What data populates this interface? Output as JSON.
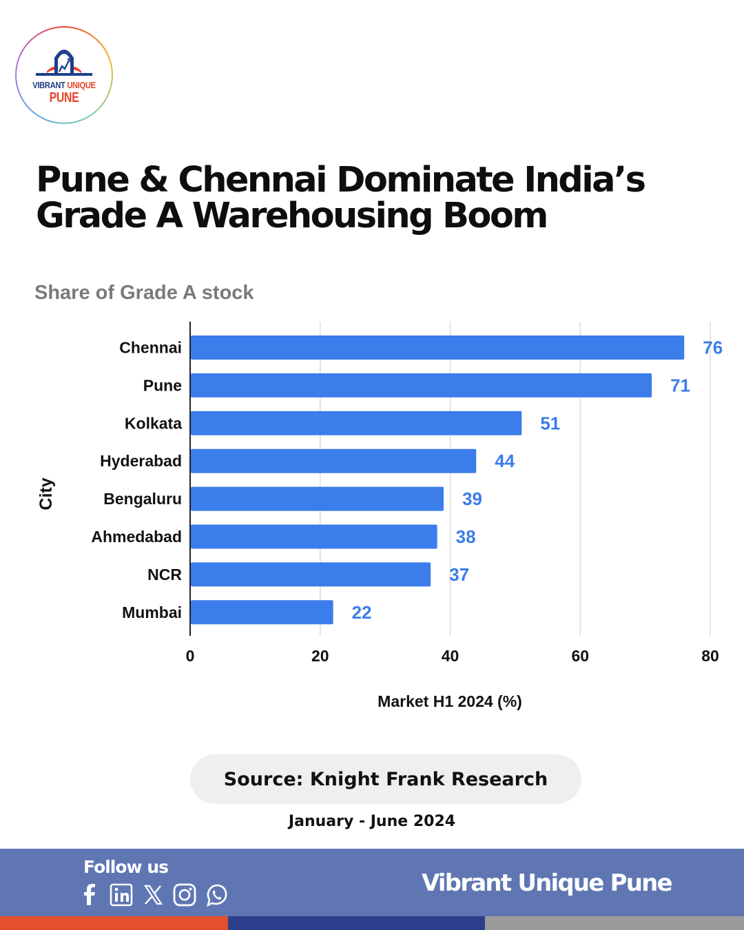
{
  "brand": {
    "logo_line1_a": "VIBRANT ",
    "logo_line1_b": "UNIQUE",
    "logo_line2": "PUNE",
    "accent_color": "#e8462a",
    "navy_color": "#1f3f8a"
  },
  "title": {
    "line1": "Pune & Chennai Dominate India’s",
    "line2": "Grade A Warehousing Boom"
  },
  "chart_data": {
    "type": "bar",
    "orientation": "horizontal",
    "title": "Share of Grade A stock",
    "categories": [
      "Chennai",
      "Pune",
      "Kolkata",
      "Hyderabad",
      "Bengaluru",
      "Ahmedabad",
      "NCR",
      "Mumbai"
    ],
    "values": [
      76,
      71,
      51,
      44,
      39,
      38,
      37,
      22
    ],
    "xlabel": "Market H1 2024 (%)",
    "ylabel": "City",
    "xlim": [
      0,
      80
    ],
    "xticks": [
      0,
      20,
      40,
      60,
      80
    ],
    "grid": true,
    "bar_color": "#3b7dea",
    "value_label_color": "#3b7dea"
  },
  "source": {
    "label": "Source: Knight Frank Research",
    "period": "January - June 2024"
  },
  "footer": {
    "follow_label": "Follow us",
    "brand_name": "Vibrant Unique Pune",
    "social_icons": [
      "facebook-icon",
      "linkedin-icon",
      "x-icon",
      "instagram-icon",
      "whatsapp-icon"
    ]
  }
}
